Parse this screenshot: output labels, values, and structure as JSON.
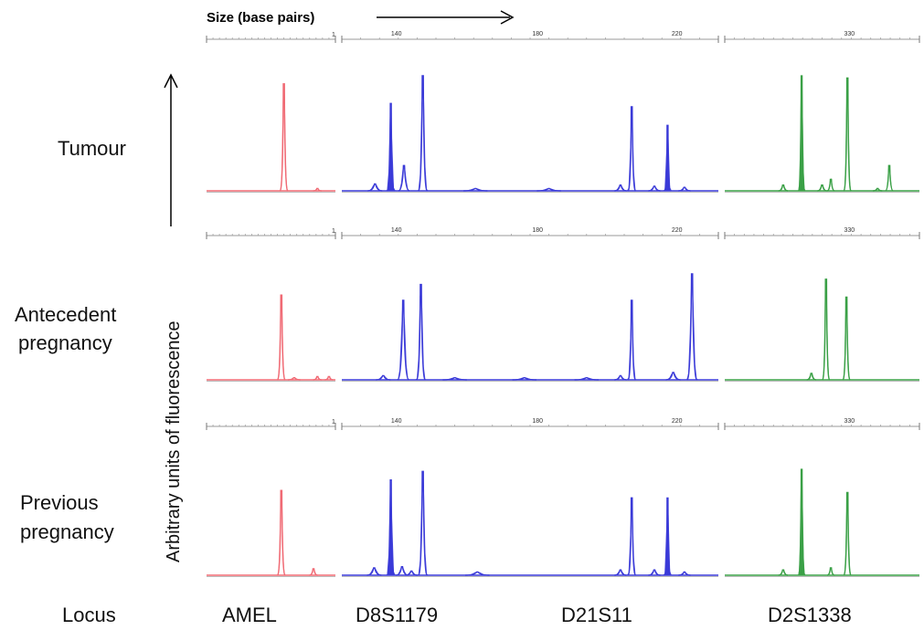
{
  "chart_data": {
    "type": "line",
    "xlabel": "Size (base pairs)",
    "ylabel": "Arbitrary units of fluorescence",
    "locus_header": "Locus",
    "loci": [
      "AMEL",
      "D8S1179",
      "D21S11",
      "D2S1338"
    ],
    "size_ticks": [
      {
        "panel": 1,
        "label": "140",
        "frac": 0.145
      },
      {
        "panel": 1,
        "label": "180",
        "frac": 0.52
      },
      {
        "panel": 1,
        "label": "220",
        "frac": 0.89
      },
      {
        "panel": 2,
        "label": "330",
        "frac": 0.64
      }
    ],
    "amel_tick_label": "1",
    "rows": [
      {
        "label": [
          "Tumour"
        ],
        "panels": [
          {
            "color": "#f06a74",
            "peaks": [
              {
                "x": 0.6,
                "h": 0.93,
                "w": 0.018
              },
              {
                "x": 0.86,
                "h": 0.02,
                "w": 0.02
              }
            ]
          },
          {
            "color": "#3a3ad8",
            "peaks": [
              {
                "x": 0.088,
                "h": 0.06,
                "w": 0.012
              },
              {
                "x": 0.13,
                "h": 0.76,
                "w": 0.006,
                "filled": true
              },
              {
                "x": 0.165,
                "h": 0.22,
                "w": 0.009
              },
              {
                "x": 0.215,
                "h": 1.0,
                "w": 0.007
              },
              {
                "x": 0.355,
                "h": 0.02,
                "w": 0.02
              },
              {
                "x": 0.55,
                "h": 0.02,
                "w": 0.02
              },
              {
                "x": 0.74,
                "h": 0.05,
                "w": 0.01
              },
              {
                "x": 0.77,
                "h": 0.73,
                "w": 0.006
              },
              {
                "x": 0.83,
                "h": 0.04,
                "w": 0.01
              },
              {
                "x": 0.865,
                "h": 0.57,
                "w": 0.005,
                "filled": true
              },
              {
                "x": 0.91,
                "h": 0.03,
                "w": 0.01
              }
            ]
          },
          {
            "color": "#3aa046",
            "peaks": [
              {
                "x": 0.3,
                "h": 0.05,
                "w": 0.015
              },
              {
                "x": 0.395,
                "h": 1.0,
                "w": 0.01,
                "filled": true
              },
              {
                "x": 0.5,
                "h": 0.05,
                "w": 0.015
              },
              {
                "x": 0.545,
                "h": 0.1,
                "w": 0.012
              },
              {
                "x": 0.63,
                "h": 0.98,
                "w": 0.011
              },
              {
                "x": 0.785,
                "h": 0.02,
                "w": 0.015
              },
              {
                "x": 0.845,
                "h": 0.22,
                "w": 0.012
              }
            ]
          }
        ]
      },
      {
        "label": [
          "Antecedent",
          "pregnancy"
        ],
        "panels": [
          {
            "color": "#f06a74",
            "peaks": [
              {
                "x": 0.58,
                "h": 0.8,
                "w": 0.018
              },
              {
                "x": 0.68,
                "h": 0.02,
                "w": 0.03
              },
              {
                "x": 0.86,
                "h": 0.03,
                "w": 0.02
              },
              {
                "x": 0.95,
                "h": 0.03,
                "w": 0.02
              }
            ]
          },
          {
            "color": "#3a3ad8",
            "peaks": [
              {
                "x": 0.11,
                "h": 0.04,
                "w": 0.012
              },
              {
                "x": 0.163,
                "h": 0.75,
                "w": 0.009
              },
              {
                "x": 0.21,
                "h": 0.9,
                "w": 0.007
              },
              {
                "x": 0.3,
                "h": 0.02,
                "w": 0.02
              },
              {
                "x": 0.485,
                "h": 0.02,
                "w": 0.02
              },
              {
                "x": 0.65,
                "h": 0.02,
                "w": 0.02
              },
              {
                "x": 0.74,
                "h": 0.04,
                "w": 0.01
              },
              {
                "x": 0.77,
                "h": 0.75,
                "w": 0.006
              },
              {
                "x": 0.88,
                "h": 0.07,
                "w": 0.012
              },
              {
                "x": 0.93,
                "h": 1.0,
                "w": 0.008
              }
            ]
          },
          {
            "color": "#3aa046",
            "peaks": [
              {
                "x": 0.445,
                "h": 0.06,
                "w": 0.015
              },
              {
                "x": 0.52,
                "h": 0.95,
                "w": 0.011
              },
              {
                "x": 0.625,
                "h": 0.78,
                "w": 0.011
              }
            ]
          }
        ]
      },
      {
        "label": [
          "Previous",
          "pregnancy"
        ],
        "panels": [
          {
            "color": "#f06a74",
            "peaks": [
              {
                "x": 0.58,
                "h": 0.8,
                "w": 0.018
              },
              {
                "x": 0.83,
                "h": 0.06,
                "w": 0.02
              }
            ]
          },
          {
            "color": "#3a3ad8",
            "peaks": [
              {
                "x": 0.086,
                "h": 0.07,
                "w": 0.012
              },
              {
                "x": 0.13,
                "h": 0.9,
                "w": 0.006,
                "filled": true
              },
              {
                "x": 0.16,
                "h": 0.08,
                "w": 0.01
              },
              {
                "x": 0.185,
                "h": 0.04,
                "w": 0.01
              },
              {
                "x": 0.215,
                "h": 0.98,
                "w": 0.007
              },
              {
                "x": 0.36,
                "h": 0.03,
                "w": 0.02
              },
              {
                "x": 0.74,
                "h": 0.05,
                "w": 0.01
              },
              {
                "x": 0.77,
                "h": 0.73,
                "w": 0.006
              },
              {
                "x": 0.83,
                "h": 0.05,
                "w": 0.01
              },
              {
                "x": 0.865,
                "h": 0.73,
                "w": 0.005,
                "filled": true
              },
              {
                "x": 0.91,
                "h": 0.03,
                "w": 0.01
              }
            ]
          },
          {
            "color": "#3aa046",
            "peaks": [
              {
                "x": 0.3,
                "h": 0.05,
                "w": 0.015
              },
              {
                "x": 0.395,
                "h": 1.0,
                "w": 0.01,
                "filled": true
              },
              {
                "x": 0.545,
                "h": 0.07,
                "w": 0.012
              },
              {
                "x": 0.63,
                "h": 0.78,
                "w": 0.011
              }
            ]
          }
        ]
      }
    ]
  }
}
